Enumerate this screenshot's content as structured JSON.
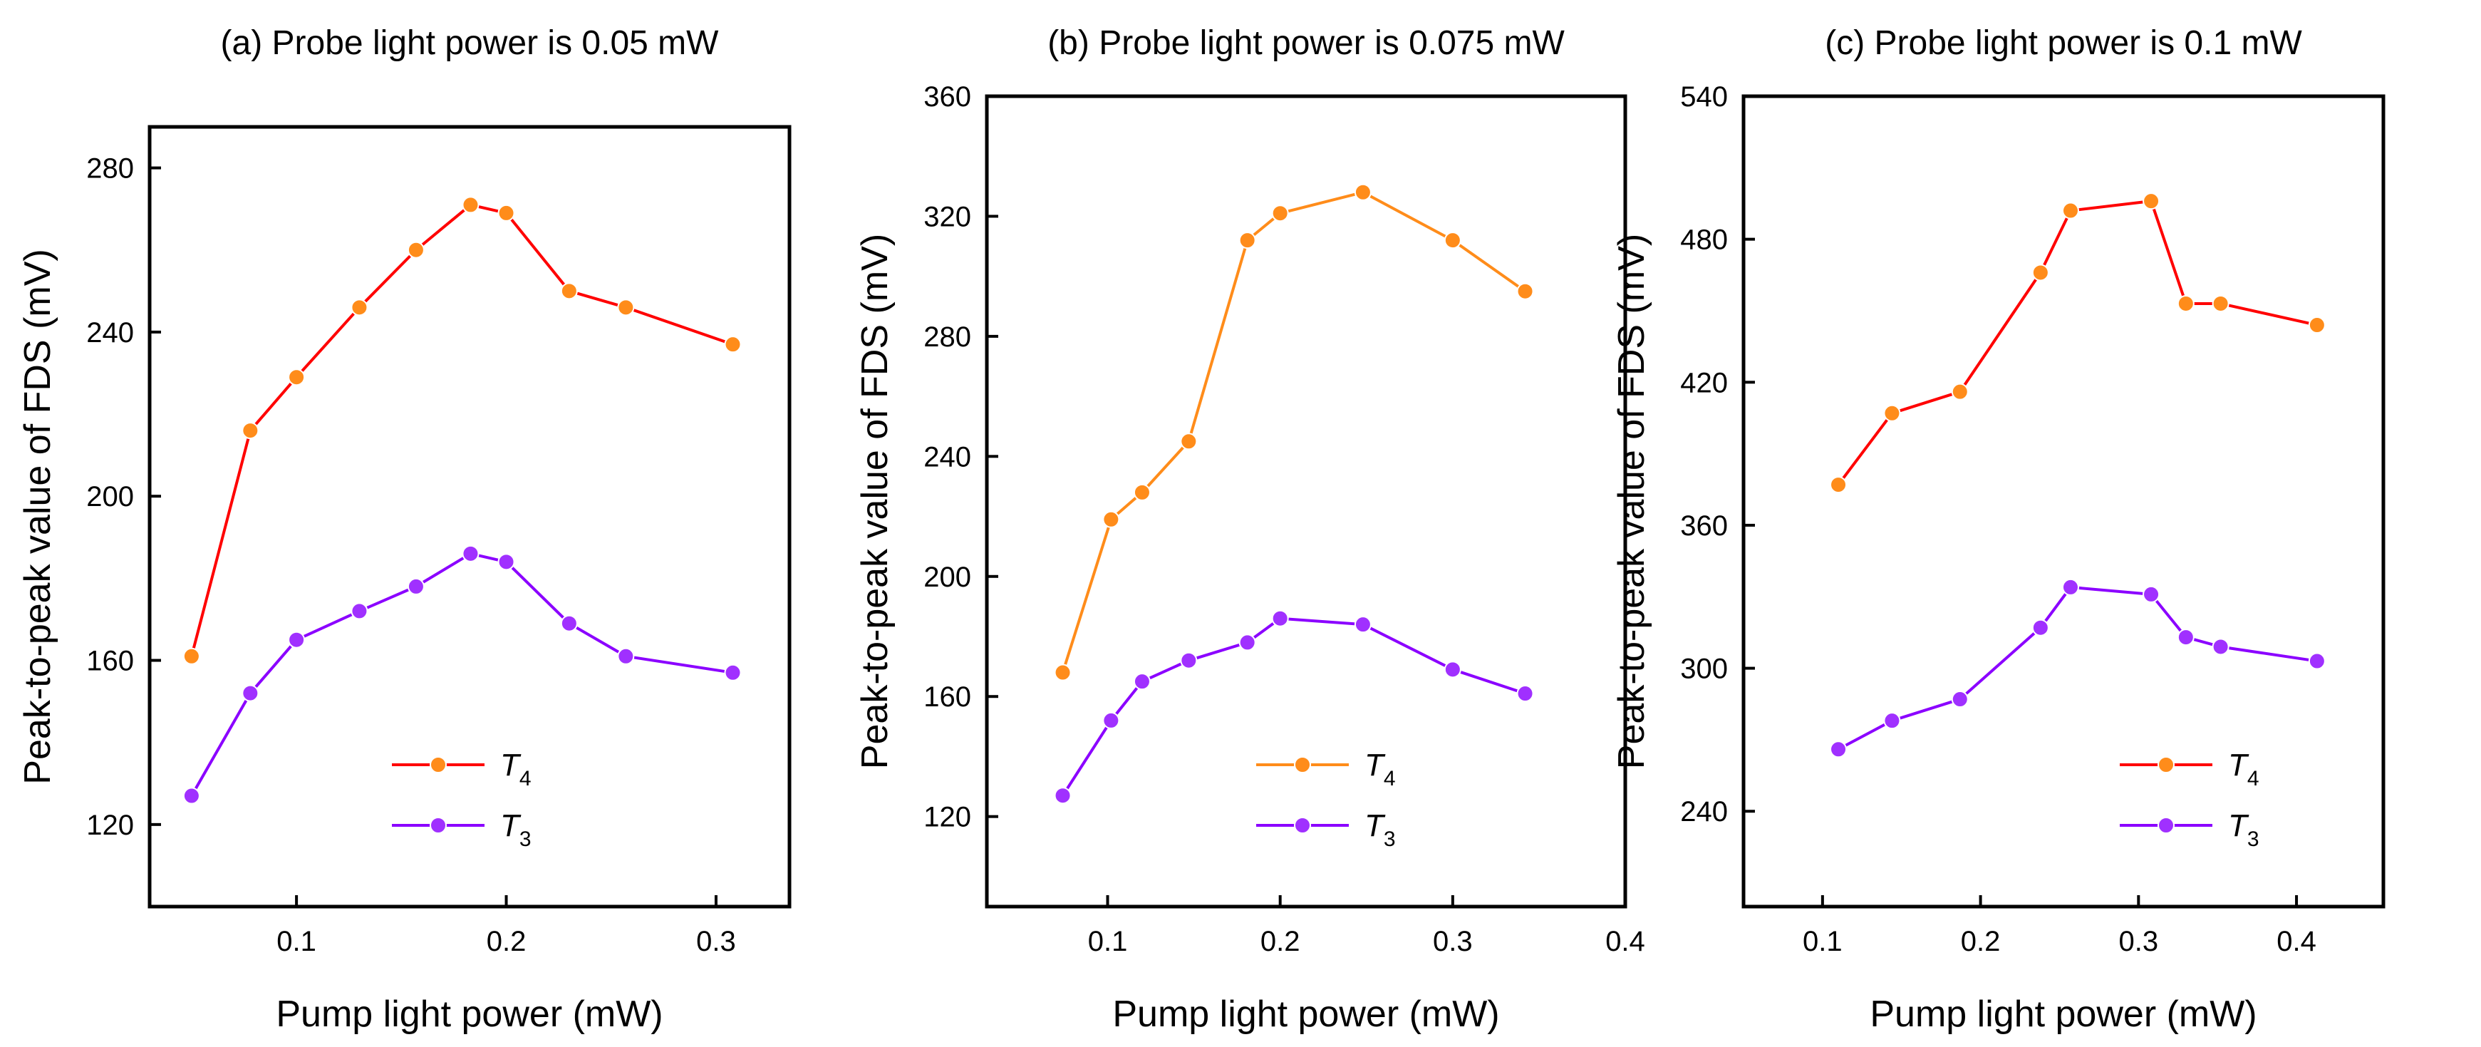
{
  "chart_data": [
    {
      "type": "line",
      "panel_id": "a",
      "title": "(a) Probe light power is 0.05 mW",
      "xlabel": "Pump light power (mW)",
      "ylabel": "Peak-to-peak value of FDS (mV)",
      "xlim": [
        0.03,
        0.335
      ],
      "ylim": [
        100,
        290
      ],
      "xticks": [
        0.1,
        0.2,
        0.3
      ],
      "xtick_labels": [
        "0.1",
        "0.2",
        "0.3"
      ],
      "yticks": [
        120,
        160,
        200,
        240,
        280
      ],
      "ytick_labels": [
        "120",
        "160",
        "200",
        "240",
        "280"
      ],
      "legend_position": "bottom-center",
      "series": [
        {
          "name": "T4",
          "label_main": "T",
          "label_sub": "4",
          "line_color": "#ff0000",
          "marker_color": "#ff8c1a",
          "x": [
            0.05,
            0.078,
            0.1,
            0.13,
            0.157,
            0.183,
            0.2,
            0.23,
            0.257,
            0.308
          ],
          "y": [
            161,
            216,
            229,
            246,
            260,
            271,
            269,
            250,
            246,
            237
          ]
        },
        {
          "name": "T3",
          "label_main": "T",
          "label_sub": "3",
          "line_color": "#8b00ff",
          "marker_color": "#a030ff",
          "x": [
            0.05,
            0.078,
            0.1,
            0.13,
            0.157,
            0.183,
            0.2,
            0.23,
            0.257,
            0.308
          ],
          "y": [
            127,
            152,
            165,
            172,
            178,
            186,
            184,
            169,
            161,
            157
          ]
        }
      ]
    },
    {
      "type": "line",
      "panel_id": "b",
      "title": "(b) Probe light power is 0.075 mW",
      "xlabel": "Pump light power (mW)",
      "ylabel": "Peak-to-peak value of FDS (mV)",
      "xlim": [
        0.03,
        0.4
      ],
      "ylim": [
        90,
        360
      ],
      "xticks": [
        0.1,
        0.2,
        0.3,
        0.4
      ],
      "xtick_labels": [
        "0.1",
        "0.2",
        "0.3",
        "0.4"
      ],
      "yticks": [
        120,
        160,
        200,
        240,
        280,
        320,
        360
      ],
      "ytick_labels": [
        "120",
        "160",
        "200",
        "240",
        "280",
        "320",
        "360"
      ],
      "legend_position": "bottom-center",
      "series": [
        {
          "name": "T4",
          "label_main": "T",
          "label_sub": "4",
          "line_color": "#ff8c1a",
          "marker_color": "#ff8c1a",
          "x": [
            0.074,
            0.102,
            0.12,
            0.147,
            0.181,
            0.2,
            0.248,
            0.3,
            0.342
          ],
          "y": [
            168,
            219,
            228,
            245,
            312,
            321,
            328,
            312,
            295
          ]
        },
        {
          "name": "T3",
          "label_main": "T",
          "label_sub": "3",
          "line_color": "#8b00ff",
          "marker_color": "#a030ff",
          "x": [
            0.074,
            0.102,
            0.12,
            0.147,
            0.181,
            0.2,
            0.248,
            0.3,
            0.342
          ],
          "y": [
            127,
            152,
            165,
            172,
            178,
            186,
            184,
            169,
            161
          ]
        }
      ]
    },
    {
      "type": "line",
      "panel_id": "c",
      "title": "(c) Probe light power is 0.1 mW",
      "xlabel": "Pump light power (mW)",
      "ylabel": "Peak-to-peak value of FDS (mV)",
      "xlim": [
        0.05,
        0.455
      ],
      "ylim": [
        200,
        540
      ],
      "xticks": [
        0.1,
        0.2,
        0.3,
        0.4
      ],
      "xtick_labels": [
        "0.1",
        "0.2",
        "0.3",
        "0.4"
      ],
      "yticks": [
        240,
        300,
        360,
        420,
        480,
        540
      ],
      "ytick_labels": [
        "240",
        "300",
        "360",
        "420",
        "480",
        "540"
      ],
      "legend_position": "bottom-right",
      "series": [
        {
          "name": "T4",
          "label_main": "T",
          "label_sub": "4",
          "line_color": "#ff0000",
          "marker_color": "#ff8c1a",
          "x": [
            0.11,
            0.144,
            0.187,
            0.238,
            0.257,
            0.308,
            0.33,
            0.352,
            0.413
          ],
          "y": [
            377,
            407,
            416,
            466,
            492,
            496,
            453,
            453,
            444
          ]
        },
        {
          "name": "T3",
          "label_main": "T",
          "label_sub": "3",
          "line_color": "#8b00ff",
          "marker_color": "#a030ff",
          "x": [
            0.11,
            0.144,
            0.187,
            0.238,
            0.257,
            0.308,
            0.33,
            0.352,
            0.413
          ],
          "y": [
            266,
            278,
            287,
            317,
            334,
            331,
            313,
            309,
            303
          ]
        }
      ]
    }
  ]
}
